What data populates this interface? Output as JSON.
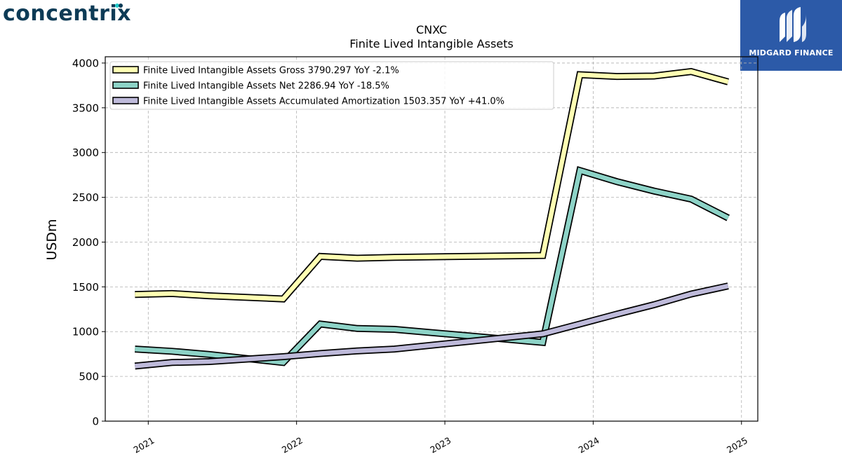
{
  "logos": {
    "left_text": "concentrix",
    "right_text": "MIDGARD FINANCE"
  },
  "colors": {
    "gross": "#ffffb3",
    "net": "#8dd3c7",
    "amortization": "#bebada",
    "outline": "#000000",
    "brand_left": "#0d3b56",
    "brand_right": "#2c5aa8"
  },
  "chart_data": {
    "type": "line",
    "title": "CNXC",
    "subtitle": "Finite Lived Intangible Assets",
    "ylabel": "USDm",
    "xlabel": "",
    "ylim": [
      0,
      4070
    ],
    "yticks": [
      0,
      500,
      1000,
      1500,
      2000,
      2500,
      3000,
      3500,
      4000
    ],
    "xlim": [
      2020.71,
      2025.11
    ],
    "xticks": [
      2021,
      2022,
      2023,
      2024,
      2025
    ],
    "xtick_labels": [
      "2021",
      "2022",
      "2023",
      "2024",
      "2025"
    ],
    "grid": true,
    "legend_position": "top-left",
    "x": [
      2020.91,
      2021.16,
      2021.41,
      2021.91,
      2022.16,
      2022.41,
      2022.66,
      2023.66,
      2023.91,
      2024.16,
      2024.41,
      2024.66,
      2024.91
    ],
    "series": [
      {
        "name": "Finite Lived Intangible Assets Gross  3790.297 YoY -2.1%",
        "color": "#ffffb3",
        "values": [
          1415,
          1425,
          1400,
          1365,
          1840,
          1820,
          1830,
          1850,
          3870,
          3850,
          3855,
          3905,
          3790
        ]
      },
      {
        "name": "Finite Lived Intangible Assets Net  2286.94 YoY -18.5%",
        "color": "#8dd3c7",
        "values": [
          805,
          780,
          745,
          655,
          1085,
          1035,
          1025,
          880,
          2800,
          2675,
          2570,
          2480,
          2270
        ]
      },
      {
        "name": "Finite Lived Intangible Assets Accumulated Amortization  1503.357 YoY +41.0%",
        "color": "#bebada",
        "values": [
          615,
          655,
          665,
          720,
          755,
          785,
          805,
          975,
          1085,
          1195,
          1300,
          1420,
          1510
        ]
      }
    ]
  }
}
